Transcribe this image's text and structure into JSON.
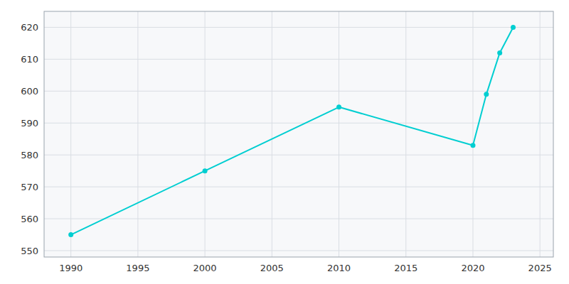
{
  "chart_data": {
    "type": "line",
    "x": [
      1990,
      2000,
      2010,
      2020,
      2021,
      2022,
      2023
    ],
    "values": [
      555,
      575,
      595,
      583,
      599,
      612,
      620
    ],
    "color": "#00CED1",
    "marker": "circle",
    "xlim": [
      1988,
      2026
    ],
    "ylim": [
      548,
      625
    ],
    "xticks": [
      1990,
      1995,
      2000,
      2005,
      2010,
      2015,
      2020,
      2025
    ],
    "yticks": [
      550,
      560,
      570,
      580,
      590,
      600,
      610,
      620
    ],
    "grid": true
  }
}
